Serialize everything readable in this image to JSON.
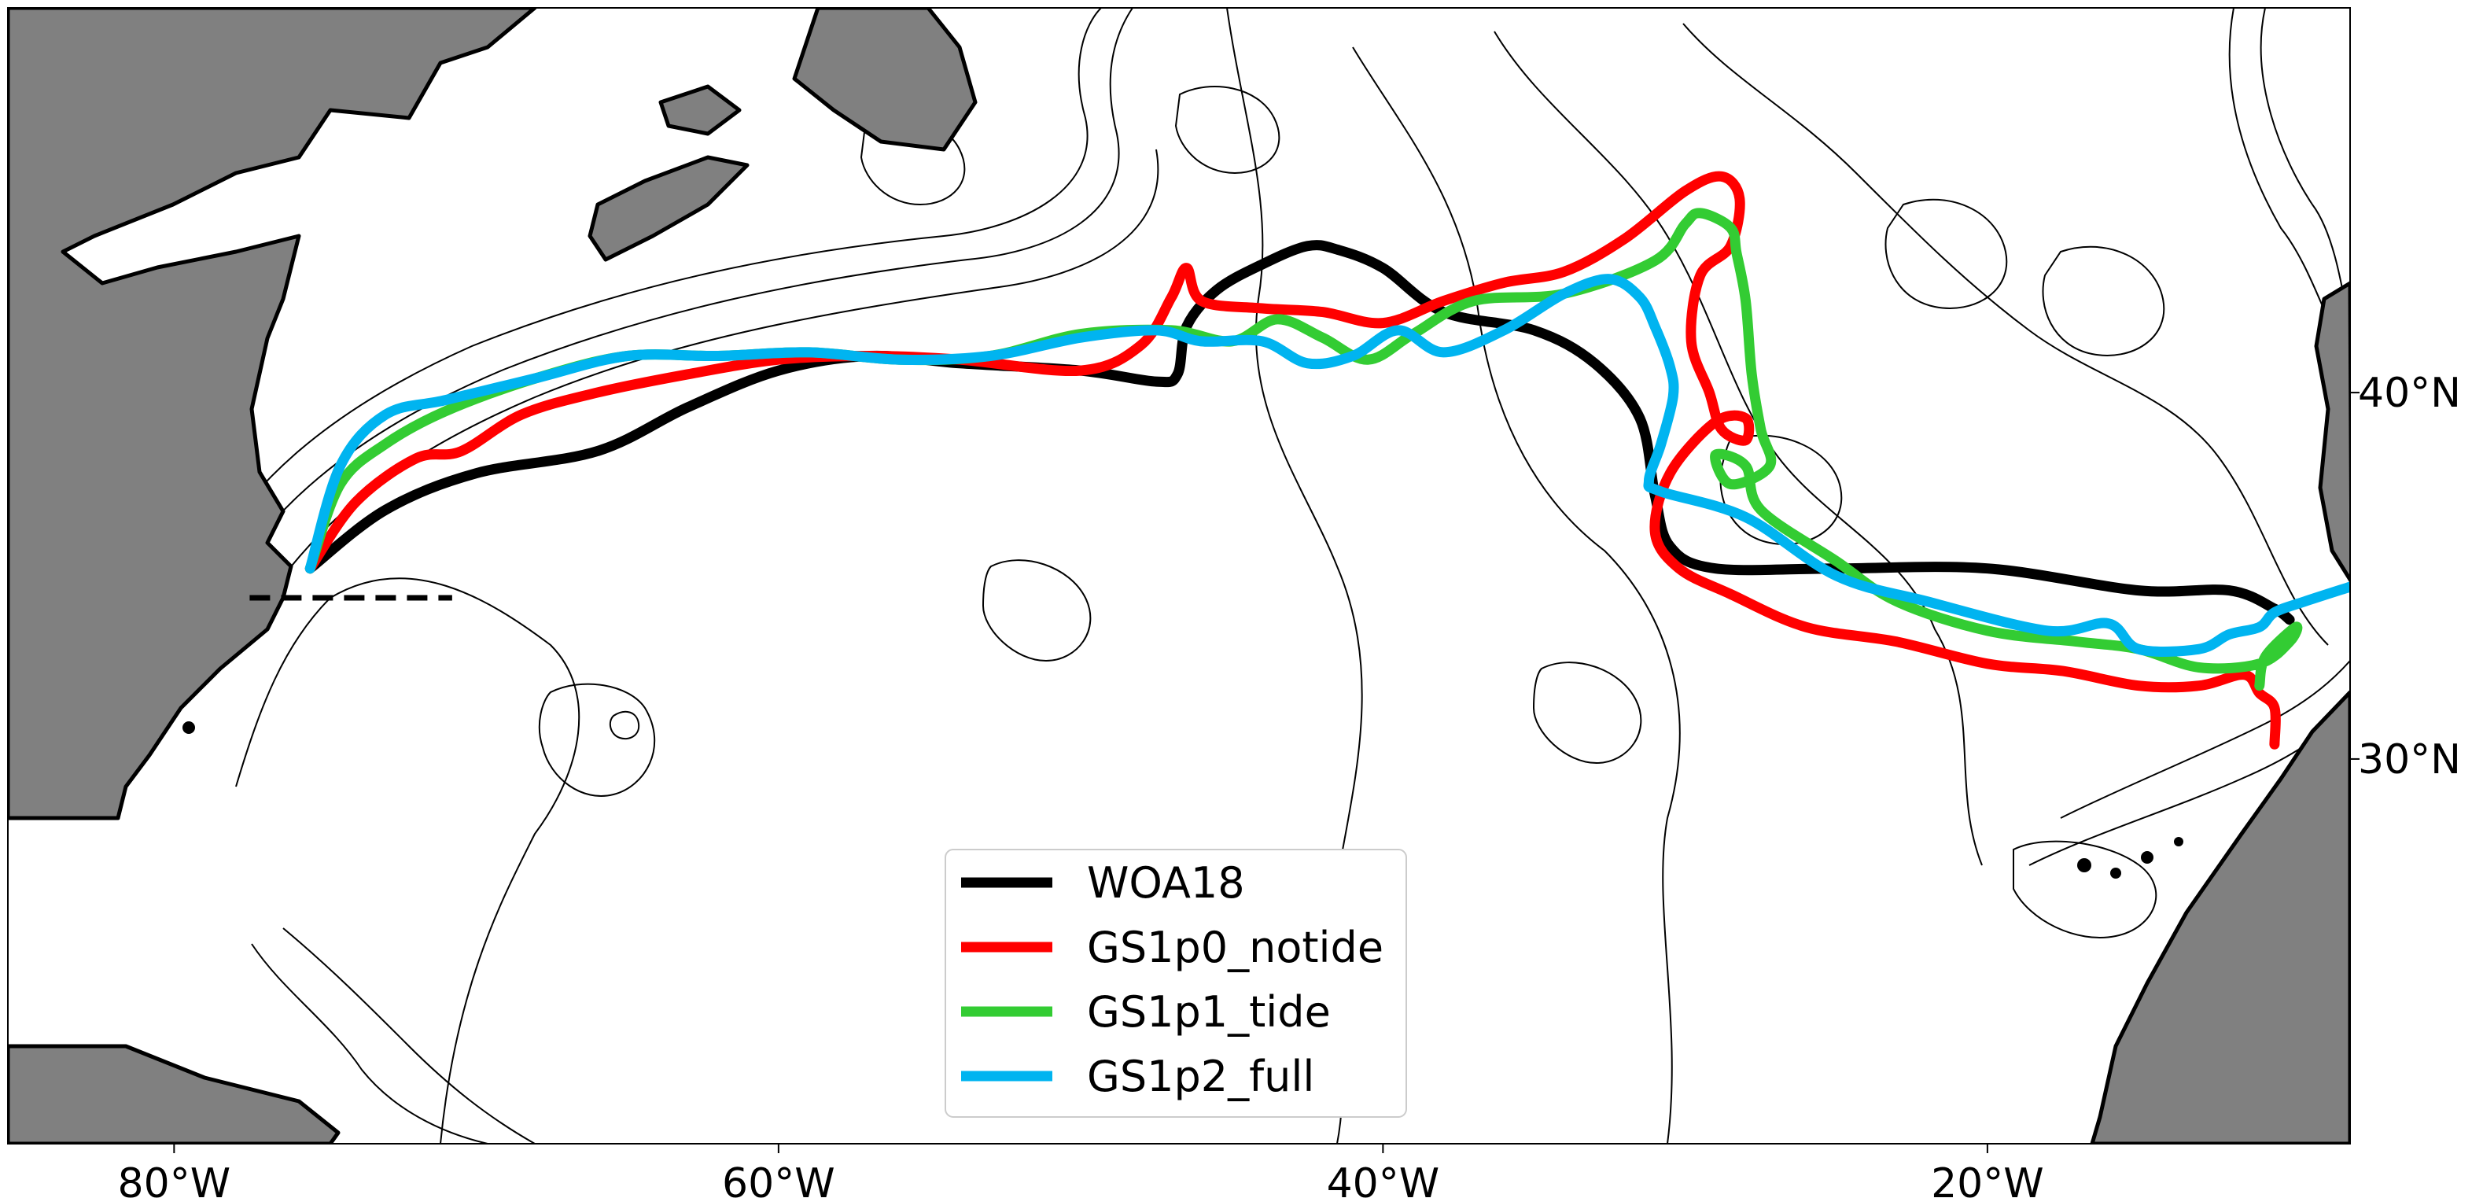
{
  "chart_data": {
    "type": "line",
    "title": "",
    "xlabel": "",
    "ylabel": "",
    "xlim": [
      -85.5,
      -8
    ],
    "ylim": [
      19.5,
      50.5
    ],
    "x_ticks": [
      {
        "value": -80,
        "label": "80°W"
      },
      {
        "value": -60,
        "label": "60°W"
      },
      {
        "value": -40,
        "label": "40°W"
      },
      {
        "value": -20,
        "label": "20°W"
      }
    ],
    "y_ticks": [
      {
        "value": 40,
        "label": "40°N"
      },
      {
        "value": 30,
        "label": "30°N"
      }
    ],
    "legend_position": "bottom-center",
    "background": "ocean bathymetry contours with grey land masses",
    "land_color": "#808080",
    "reference_line": {
      "style": "dashed",
      "color": "#000000",
      "lat": 34.4,
      "lon_start": -77.5,
      "lon_end": -70.8
    },
    "series": [
      {
        "name": "WOA18",
        "color": "#000000",
        "points": [
          [
            -75.5,
            35.2
          ],
          [
            -73,
            36.8
          ],
          [
            -70,
            37.8
          ],
          [
            -66,
            38.4
          ],
          [
            -63,
            39.6
          ],
          [
            -60,
            40.6
          ],
          [
            -57,
            41.0
          ],
          [
            -54,
            40.8
          ],
          [
            -50,
            40.6
          ],
          [
            -47.5,
            40.3
          ],
          [
            -46.8,
            40.5
          ],
          [
            -46.5,
            41.8
          ],
          [
            -45.5,
            42.8
          ],
          [
            -44,
            43.5
          ],
          [
            -42.5,
            44.0
          ],
          [
            -41.5,
            43.9
          ],
          [
            -40,
            43.4
          ],
          [
            -38,
            42.2
          ],
          [
            -35,
            41.7
          ],
          [
            -33,
            40.8
          ],
          [
            -31.5,
            39.3
          ],
          [
            -31,
            37.2
          ],
          [
            -30.5,
            35.8
          ],
          [
            -29,
            35.2
          ],
          [
            -25,
            35.2
          ],
          [
            -20,
            35.2
          ],
          [
            -15,
            34.6
          ],
          [
            -12,
            34.6
          ],
          [
            -10.5,
            34.1
          ],
          [
            -10,
            33.8
          ]
        ]
      },
      {
        "name": "GS1p0_notide",
        "color": "#ff0000",
        "points": [
          [
            -75.5,
            35.2
          ],
          [
            -74,
            37.0
          ],
          [
            -72,
            38.2
          ],
          [
            -70.5,
            38.4
          ],
          [
            -68.5,
            39.4
          ],
          [
            -66,
            40.0
          ],
          [
            -63,
            40.5
          ],
          [
            -60,
            40.9
          ],
          [
            -57,
            41.0
          ],
          [
            -54,
            40.9
          ],
          [
            -50,
            40.6
          ],
          [
            -48,
            41.3
          ],
          [
            -47,
            42.6
          ],
          [
            -46.5,
            43.4
          ],
          [
            -46,
            42.5
          ],
          [
            -44,
            42.3
          ],
          [
            -42,
            42.2
          ],
          [
            -40,
            41.9
          ],
          [
            -38,
            42.5
          ],
          [
            -36,
            43.0
          ],
          [
            -34,
            43.3
          ],
          [
            -32,
            44.2
          ],
          [
            -30,
            45.5
          ],
          [
            -28.8,
            45.9
          ],
          [
            -28.2,
            45.3
          ],
          [
            -28.5,
            44.0
          ],
          [
            -29.5,
            43.2
          ],
          [
            -29.8,
            41.4
          ],
          [
            -29.2,
            40.0
          ],
          [
            -28.8,
            39.0
          ],
          [
            -28,
            38.7
          ],
          [
            -28,
            39.3
          ],
          [
            -29,
            39.2
          ],
          [
            -30.5,
            37.8
          ],
          [
            -31,
            36.2
          ],
          [
            -30.2,
            35.2
          ],
          [
            -28.5,
            34.5
          ],
          [
            -26,
            33.6
          ],
          [
            -23,
            33.2
          ],
          [
            -20,
            32.6
          ],
          [
            -17.5,
            32.4
          ],
          [
            -15,
            32.0
          ],
          [
            -13,
            32.0
          ],
          [
            -11.5,
            32.3
          ],
          [
            -11,
            31.8
          ],
          [
            -10.5,
            31.4
          ],
          [
            -10.5,
            30.4
          ]
        ]
      },
      {
        "name": "GS1p1_tide",
        "color": "#33cc33",
        "points": [
          [
            -75.5,
            35.2
          ],
          [
            -74.5,
            37.5
          ],
          [
            -73,
            38.6
          ],
          [
            -71,
            39.5
          ],
          [
            -68,
            40.4
          ],
          [
            -65,
            41.0
          ],
          [
            -62,
            41.0
          ],
          [
            -59,
            41.1
          ],
          [
            -56,
            40.9
          ],
          [
            -53,
            41.0
          ],
          [
            -50,
            41.6
          ],
          [
            -47,
            41.7
          ],
          [
            -45,
            41.4
          ],
          [
            -43.5,
            42.0
          ],
          [
            -42,
            41.5
          ],
          [
            -40.5,
            40.9
          ],
          [
            -39,
            41.6
          ],
          [
            -37,
            42.5
          ],
          [
            -34,
            42.7
          ],
          [
            -31,
            43.6
          ],
          [
            -30,
            44.6
          ],
          [
            -29.5,
            44.9
          ],
          [
            -28.5,
            44.5
          ],
          [
            -28.3,
            43.8
          ],
          [
            -28,
            42.5
          ],
          [
            -27.8,
            40.5
          ],
          [
            -27.5,
            39.0
          ],
          [
            -27.2,
            38.0
          ],
          [
            -28.5,
            37.5
          ],
          [
            -29,
            38.3
          ],
          [
            -28,
            38.0
          ],
          [
            -27.5,
            36.8
          ],
          [
            -25,
            35.4
          ],
          [
            -23,
            34.3
          ],
          [
            -20,
            33.5
          ],
          [
            -17,
            33.2
          ],
          [
            -15,
            33.0
          ],
          [
            -13,
            32.5
          ],
          [
            -11,
            32.6
          ],
          [
            -10,
            33.2
          ],
          [
            -9.8,
            33.6
          ],
          [
            -10.8,
            32.8
          ],
          [
            -11,
            32.0
          ]
        ]
      },
      {
        "name": "GS1p2_full",
        "color": "#00b4f0",
        "points": [
          [
            -75.5,
            35.2
          ],
          [
            -74.5,
            38.0
          ],
          [
            -73,
            39.4
          ],
          [
            -71,
            39.8
          ],
          [
            -68,
            40.4
          ],
          [
            -65,
            41.0
          ],
          [
            -62,
            41.0
          ],
          [
            -59,
            41.1
          ],
          [
            -56,
            40.9
          ],
          [
            -53,
            41.0
          ],
          [
            -50,
            41.5
          ],
          [
            -47.5,
            41.7
          ],
          [
            -46,
            41.4
          ],
          [
            -44,
            41.4
          ],
          [
            -42.5,
            40.8
          ],
          [
            -41,
            41.0
          ],
          [
            -39.5,
            41.7
          ],
          [
            -38,
            41.1
          ],
          [
            -36,
            41.7
          ],
          [
            -34,
            42.7
          ],
          [
            -32.5,
            43.1
          ],
          [
            -31.5,
            42.6
          ],
          [
            -31,
            41.8
          ],
          [
            -30.5,
            40.7
          ],
          [
            -30.4,
            39.9
          ],
          [
            -30.8,
            38.6
          ],
          [
            -31.2,
            37.6
          ],
          [
            -30.8,
            37.3
          ],
          [
            -28,
            36.6
          ],
          [
            -25,
            35.0
          ],
          [
            -22,
            34.3
          ],
          [
            -18,
            33.5
          ],
          [
            -16,
            33.7
          ],
          [
            -15,
            33.0
          ],
          [
            -13,
            33.0
          ],
          [
            -12,
            33.4
          ],
          [
            -11,
            33.6
          ],
          [
            -10.5,
            34.0
          ],
          [
            -9.5,
            34.3
          ],
          [
            -8,
            34.7
          ]
        ]
      }
    ]
  }
}
